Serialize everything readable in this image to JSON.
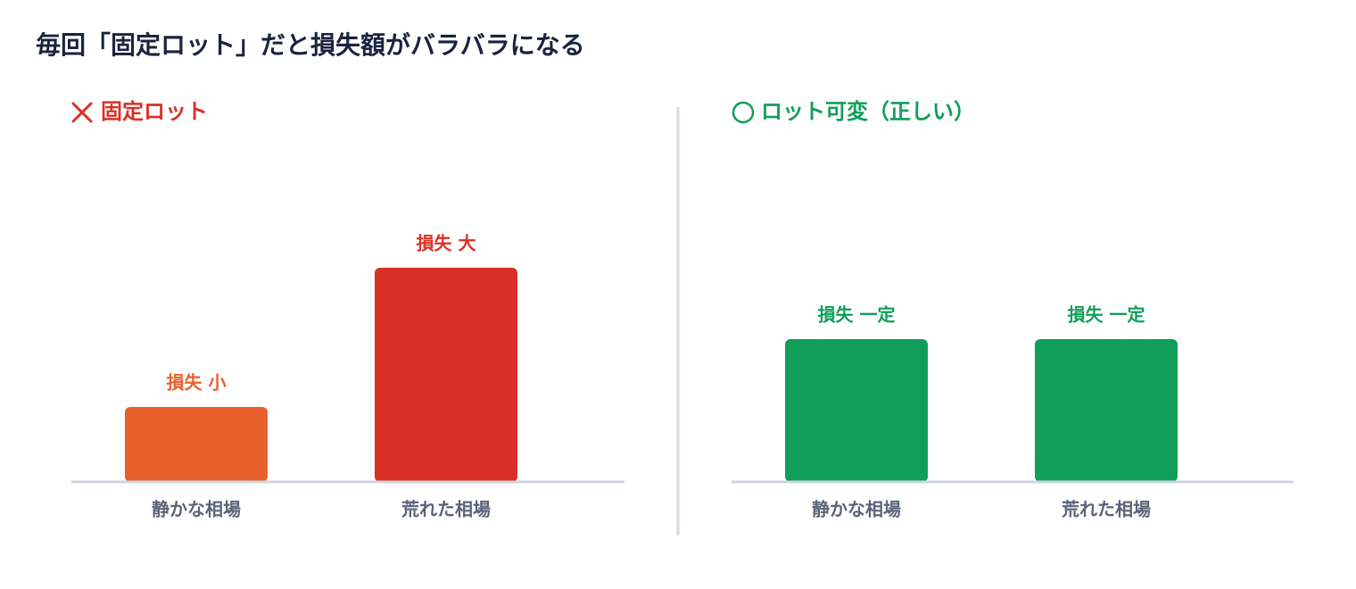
{
  "title": "毎回「固定ロット」だと損失額がバラバラになる",
  "chart_data": [
    {
      "type": "bar",
      "title": "固定ロット",
      "title_color": "#d93025",
      "categories": [
        "静かな相場",
        "荒れた相場"
      ],
      "values": [
        84,
        240
      ],
      "value_labels": [
        "損失 小",
        "損失 大"
      ],
      "colors": [
        "#e8602c",
        "#d93025"
      ],
      "ylim": [
        0,
        260
      ]
    },
    {
      "type": "bar",
      "title": "ロット可変（正しい）",
      "title_color": "#119e5a",
      "categories": [
        "静かな相場",
        "荒れた相場"
      ],
      "values": [
        160,
        160
      ],
      "value_labels": [
        "損失 一定",
        "損失 一定"
      ],
      "colors": [
        "#119e5a",
        "#119e5a"
      ],
      "ylim": [
        0,
        260
      ]
    }
  ]
}
